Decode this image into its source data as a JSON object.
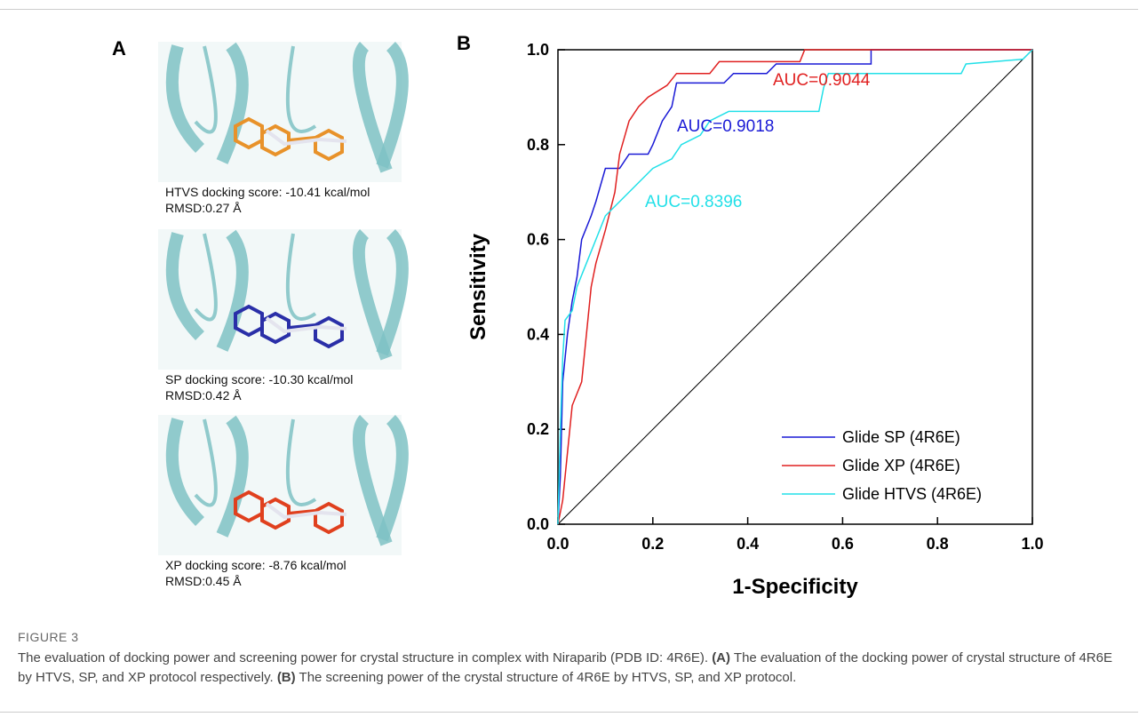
{
  "panel_a": {
    "letter": "A",
    "poses": [
      {
        "score": "HTVS docking score: -10.41 kcal/mol",
        "rmsd": "RMSD:0.27 Å",
        "ligand_color": "#e8922a"
      },
      {
        "score": "SP docking score: -10.30 kcal/mol",
        "rmsd": "RMSD:0.42 Å",
        "ligand_color": "#2a2fa8"
      },
      {
        "score": "XP docking score: -8.76 kcal/mol",
        "rmsd": "RMSD:0.45 Å",
        "ligand_color": "#e0401e"
      }
    ]
  },
  "chart_data": {
    "type": "line",
    "letter": "B",
    "x_label": "1-Specificity",
    "y_label": "Sensitivity",
    "xlim": [
      0,
      1
    ],
    "ylim": [
      0,
      1
    ],
    "xticks": [
      {
        "value": 0,
        "label": "0.0"
      },
      0.2,
      0.4,
      0.6,
      0.8,
      {
        "value": 1,
        "label": "1.0"
      }
    ],
    "yticks": [
      {
        "value": 0,
        "label": "0.0"
      },
      0.2,
      0.4,
      0.6,
      0.8,
      {
        "value": 1,
        "label": "1.0"
      }
    ],
    "diagonal": true,
    "legend": "lower right",
    "series": [
      {
        "name": "Glide SP (4R6E)",
        "color": "#1a1ad6",
        "x": [
          0,
          0.005,
          0.01,
          0.02,
          0.03,
          0.04,
          0.05,
          0.07,
          0.08,
          0.1,
          0.13,
          0.15,
          0.19,
          0.2,
          0.22,
          0.24,
          0.25,
          0.35,
          0.37,
          0.44,
          0.46,
          0.66,
          0.66,
          1
        ],
        "values": [
          0,
          0.1,
          0.3,
          0.4,
          0.47,
          0.52,
          0.6,
          0.65,
          0.68,
          0.75,
          0.75,
          0.78,
          0.78,
          0.8,
          0.85,
          0.88,
          0.93,
          0.93,
          0.95,
          0.95,
          0.97,
          0.97,
          1,
          1
        ]
      },
      {
        "name": "Glide XP (4R6E)",
        "color": "#e02020",
        "x": [
          0,
          0.01,
          0.02,
          0.03,
          0.05,
          0.06,
          0.07,
          0.08,
          0.1,
          0.12,
          0.13,
          0.15,
          0.17,
          0.19,
          0.23,
          0.25,
          0.32,
          0.34,
          0.51,
          0.52,
          1
        ],
        "values": [
          0,
          0.05,
          0.15,
          0.25,
          0.3,
          0.4,
          0.5,
          0.55,
          0.62,
          0.7,
          0.78,
          0.85,
          0.88,
          0.9,
          0.925,
          0.95,
          0.95,
          0.975,
          0.975,
          1,
          1
        ]
      },
      {
        "name": "Glide HTVS (4R6E)",
        "color": "#22e0e8",
        "x": [
          0,
          0.005,
          0.01,
          0.015,
          0.03,
          0.04,
          0.06,
          0.08,
          0.1,
          0.13,
          0.17,
          0.2,
          0.24,
          0.26,
          0.3,
          0.32,
          0.36,
          0.55,
          0.56,
          0.57,
          0.85,
          0.86,
          0.98,
          1
        ],
        "values": [
          0,
          0.2,
          0.35,
          0.43,
          0.45,
          0.5,
          0.55,
          0.6,
          0.65,
          0.68,
          0.72,
          0.75,
          0.77,
          0.8,
          0.82,
          0.85,
          0.87,
          0.87,
          0.92,
          0.95,
          0.95,
          0.97,
          0.98,
          1
        ]
      }
    ],
    "annotations": [
      {
        "text": "AUC=0.9044",
        "color": "#e02020"
      },
      {
        "text": "AUC=0.9018",
        "color": "#1a1ad6"
      },
      {
        "text": "AUC=0.8396",
        "color": "#22e0e8"
      }
    ]
  },
  "caption": {
    "label": "FIGURE 3",
    "segments": [
      "The evaluation of docking power and screening power for crystal structure in complex with Niraparib (PDB ID: 4R6E). ",
      "(A)",
      " The evaluation of the docking power of crystal structure of 4R6E by HTVS, SP, and XP protocol respectively. ",
      "(B)",
      " The screening power of the crystal structure of 4R6E by HTVS, SP, and XP protocol."
    ]
  }
}
